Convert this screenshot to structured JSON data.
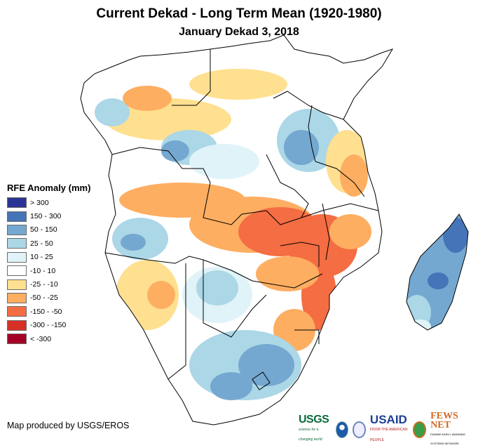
{
  "title": "Current Dekad - Long Term Mean (1920-1980)",
  "subtitle": "January Dekad 3, 2018",
  "legend": {
    "title": "RFE Anomaly (mm)",
    "items": [
      {
        "label": "> 300",
        "color": "#2b3494"
      },
      {
        "label": "150 - 300",
        "color": "#4574b8"
      },
      {
        "label": "50 - 150",
        "color": "#74a8d0"
      },
      {
        "label": "25 - 50",
        "color": "#abd7e7"
      },
      {
        "label": "10 - 25",
        "color": "#e0f3f8"
      },
      {
        "label": "-10 - 10",
        "color": "#ffffff"
      },
      {
        "label": "-25 - -10",
        "color": "#fee090"
      },
      {
        "label": "-50 - -25",
        "color": "#fdae61"
      },
      {
        "label": "-150 - -50",
        "color": "#f46d43"
      },
      {
        "label": "-300 - -150",
        "color": "#d73027"
      },
      {
        "label": "< -300",
        "color": "#a50026"
      }
    ]
  },
  "credit": "Map produced by USGS/EROS",
  "logos": {
    "usgs": "USGS",
    "usgs_tagline": "science for a changing world",
    "usaid": "USAID",
    "usaid_tagline": "FROM THE AMERICAN PEOPLE",
    "fews": "FEWS NET",
    "fews_tagline": "FAMINE EARLY WARNING SYSTEMS NETWORK"
  }
}
